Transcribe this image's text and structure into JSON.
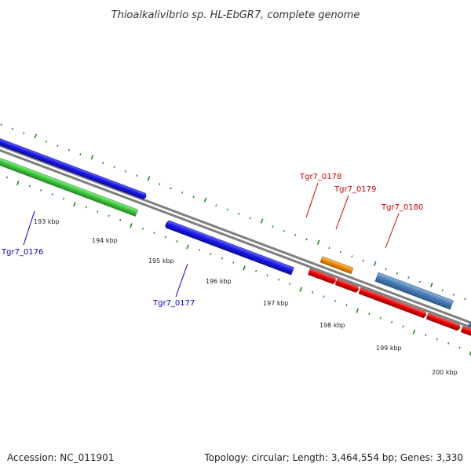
{
  "title": "Thioalkalivibrio sp. HL-EbGR7, complete genome",
  "footer": {
    "accession": "Accession: NC_011901",
    "summary": "Topology: circular; Length: 3,464,554 bp; Genes: 3,330"
  },
  "colors": {
    "backbone": "#808080",
    "tick": "#1e8a1e",
    "blue_gene": "#1a1ae6",
    "green_gene": "#3ec83e",
    "red_gene": "#e60000",
    "orange_gene": "#f08c0a",
    "steel_gene": "#4a7fb5",
    "gray_gene": "#b0b0b0",
    "label_blue": "#0000cc",
    "label_red": "#cc0000"
  },
  "scale_labels": [
    {
      "text": "193 kbp",
      "kbp": 193
    },
    {
      "text": "194 kbp",
      "kbp": 194
    },
    {
      "text": "195 kbp",
      "kbp": 195
    },
    {
      "text": "196 kbp",
      "kbp": 196
    },
    {
      "text": "197 kbp",
      "kbp": 197
    },
    {
      "text": "198 kbp",
      "kbp": 198
    },
    {
      "text": "199 kbp",
      "kbp": 199
    },
    {
      "text": "200 kbp",
      "kbp": 200
    }
  ],
  "gene_labels": [
    {
      "text": "Tgr7_0176",
      "color": "label_blue"
    },
    {
      "text": "Tgr7_0177",
      "color": "label_blue"
    },
    {
      "text": "Tgr7_0178",
      "color": "label_red"
    },
    {
      "text": "Tgr7_0179",
      "color": "label_red"
    },
    {
      "text": "Tgr7_0180",
      "color": "label_red"
    }
  ]
}
